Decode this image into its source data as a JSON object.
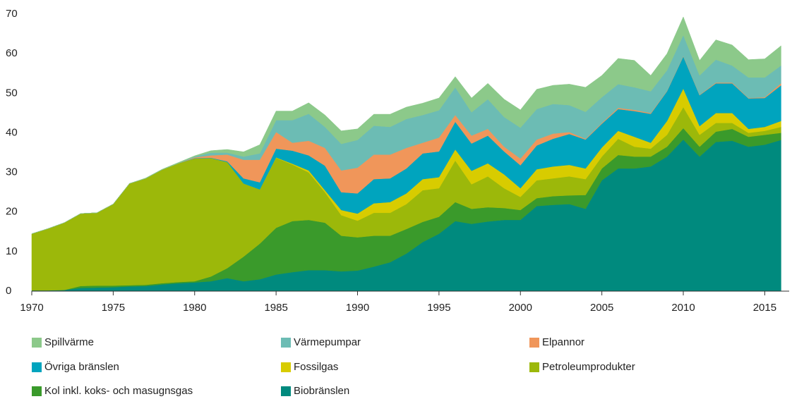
{
  "chart_data": {
    "type": "stacked_area",
    "x": [
      1970,
      1971,
      1972,
      1973,
      1974,
      1975,
      1976,
      1977,
      1978,
      1979,
      1980,
      1981,
      1982,
      1983,
      1984,
      1985,
      1986,
      1987,
      1988,
      1989,
      1990,
      1991,
      1992,
      1993,
      1994,
      1995,
      1996,
      1997,
      1998,
      1999,
      2000,
      2001,
      2002,
      2003,
      2004,
      2005,
      2006,
      2007,
      2008,
      2009,
      2010,
      2011,
      2012,
      2013,
      2014,
      2015,
      2016
    ],
    "xlim": [
      1970,
      2016.5
    ],
    "xticks": [
      1970,
      1975,
      1980,
      1985,
      1990,
      1995,
      2000,
      2005,
      2010,
      2015
    ],
    "ylim": [
      0,
      70
    ],
    "yticks": [
      0,
      10,
      20,
      30,
      40,
      50,
      60,
      70
    ],
    "series": [
      {
        "name": "Spillvärme",
        "color": "#8cc98a",
        "values": [
          0,
          0,
          0,
          0,
          0,
          0,
          0,
          0.1,
          0.1,
          0.2,
          0.2,
          0.5,
          0.8,
          1.2,
          2.2,
          2.3,
          2.3,
          2.8,
          3,
          3.3,
          2.8,
          2.9,
          3.2,
          3,
          3,
          3.1,
          2.7,
          3.6,
          4,
          4.5,
          4.5,
          5,
          4.7,
          5.3,
          6.2,
          5.5,
          6.5,
          6.8,
          4,
          4.2,
          4.6,
          3.8,
          5,
          5.2,
          4.5,
          4.7,
          5
        ]
      },
      {
        "name": "Värmepumpar",
        "color": "#6cbcb4",
        "values": [
          0,
          0,
          0,
          0,
          0,
          0,
          0,
          0,
          0,
          0,
          0.2,
          0.7,
          0.5,
          0.8,
          1.6,
          3,
          5.7,
          6.8,
          5.3,
          6.7,
          7,
          7.3,
          7,
          7.3,
          7,
          6.9,
          7,
          5.9,
          7.5,
          7.5,
          7.8,
          7.7,
          7.5,
          6.8,
          6.8,
          6.5,
          6,
          5.7,
          5.5,
          5.2,
          5.3,
          4.9,
          5.8,
          4.3,
          5.2,
          5,
          4.5
        ]
      },
      {
        "name": "Elpannor",
        "color": "#f0965a",
        "values": [
          0,
          0,
          0,
          0,
          0,
          0,
          0,
          0,
          0,
          0,
          0.2,
          0.6,
          1.7,
          4.7,
          5.7,
          4.2,
          2,
          3.7,
          4.5,
          5.5,
          6.5,
          6.2,
          6,
          5.2,
          2.7,
          3.5,
          1.7,
          2,
          1.7,
          1.2,
          1.7,
          1.5,
          1.3,
          0.5,
          0.2,
          0.2,
          0.3,
          0.3,
          0.2,
          0.1,
          0.1,
          0.1,
          0.2,
          0.2,
          0.1,
          0.2,
          0.5
        ]
      },
      {
        "name": "Övriga bränslen",
        "color": "#00a4be",
        "values": [
          0,
          0,
          0,
          0,
          0,
          0,
          0,
          0,
          0,
          0,
          0.1,
          0.1,
          0.2,
          1.3,
          1.8,
          2.2,
          3.3,
          3.8,
          6.2,
          4.5,
          5.1,
          6.1,
          6,
          6.3,
          6.5,
          6.5,
          7,
          6.9,
          7,
          5.8,
          5.8,
          6,
          7,
          7.8,
          7.3,
          6,
          5.5,
          6.5,
          7.3,
          7.5,
          8.1,
          7.8,
          7.5,
          7.5,
          7.7,
          7.3,
          9
        ]
      },
      {
        "name": "Fossilgas",
        "color": "#d8cc00",
        "values": [
          0,
          0,
          0,
          0,
          0,
          0,
          0,
          0,
          0,
          0,
          0,
          0,
          0,
          0,
          0,
          0.1,
          0.2,
          0.5,
          0.5,
          1.3,
          1.8,
          2.4,
          2.7,
          2.7,
          2.8,
          2.8,
          2.8,
          3.4,
          3.3,
          3.5,
          2.2,
          2.8,
          3,
          2.9,
          2.7,
          2.3,
          2,
          2.5,
          1.5,
          3.5,
          4.7,
          2.2,
          2.5,
          2.5,
          1,
          1,
          1.5
        ]
      },
      {
        "name": "Petroleumprodukter",
        "color": "#9cb80a",
        "values": [
          14.3,
          15.6,
          17,
          18.3,
          18.4,
          20.6,
          25.7,
          26.9,
          28.7,
          30,
          31,
          29.9,
          26.8,
          18.5,
          13.7,
          17.7,
          14.3,
          12,
          7.7,
          5.2,
          4.2,
          5.8,
          5.8,
          6.3,
          8,
          7.2,
          10.5,
          6.2,
          7.8,
          5,
          3.3,
          4.5,
          4.5,
          4.8,
          4,
          3,
          4.1,
          2.5,
          2,
          3,
          5.3,
          3,
          2.2,
          1.5,
          1,
          1,
          1.5
        ]
      },
      {
        "name": "Kol inkl. koks- och masugnsgas",
        "color": "#3a9a2b",
        "values": [
          0,
          0,
          0,
          0.5,
          0.5,
          0.4,
          0.3,
          0.3,
          0.3,
          0.3,
          0.3,
          1.2,
          2.5,
          6.2,
          9,
          11.8,
          12.9,
          12.7,
          12,
          9,
          8.4,
          7.8,
          6.7,
          6.2,
          5.1,
          4.3,
          4.8,
          3.8,
          3.6,
          3,
          2.5,
          2,
          2.2,
          2.2,
          3.5,
          3,
          3.4,
          3,
          2.5,
          2.5,
          2.9,
          2.5,
          2.6,
          3,
          2.5,
          2.5,
          1.8
        ]
      },
      {
        "name": "Biobränslen",
        "color": "#008a7e",
        "values": [
          0.2,
          0.2,
          0.3,
          0.8,
          0.9,
          1,
          1.2,
          1.3,
          1.7,
          2,
          2.2,
          2.5,
          3.3,
          2.5,
          3,
          4.2,
          4.8,
          5.3,
          5.3,
          5,
          5.2,
          6.2,
          7.3,
          9.5,
          12.4,
          14.5,
          17.7,
          17,
          17.6,
          18,
          18,
          21.5,
          21.8,
          22,
          20.8,
          28,
          31,
          31,
          31.5,
          34,
          38.3,
          34,
          37.7,
          38,
          36.5,
          37,
          38.2
        ]
      }
    ]
  }
}
